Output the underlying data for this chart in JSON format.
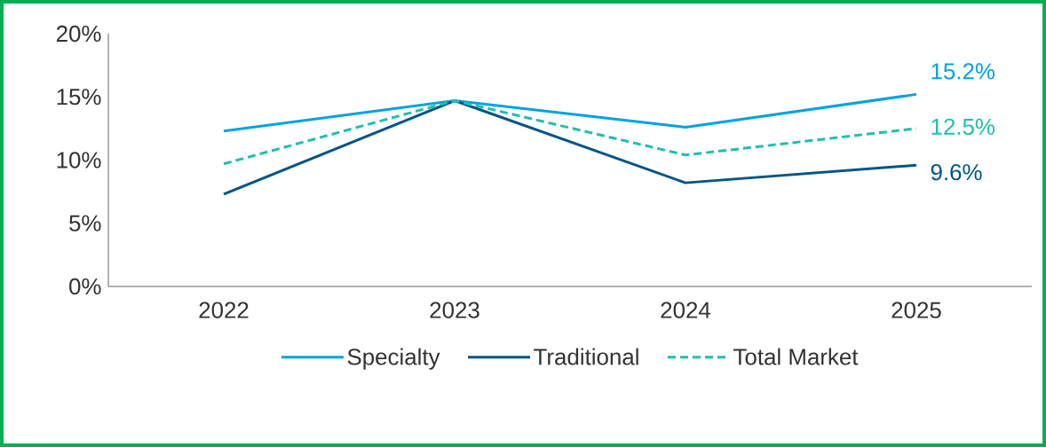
{
  "chart_data": {
    "type": "line",
    "categories": [
      "2022",
      "2023",
      "2024",
      "2025"
    ],
    "ylim": [
      0,
      20
    ],
    "yticks": [
      {
        "value": 0,
        "label": "0%"
      },
      {
        "value": 5,
        "label": "5%"
      },
      {
        "value": 10,
        "label": "10%"
      },
      {
        "value": 15,
        "label": "15%"
      },
      {
        "value": 20,
        "label": "20%"
      }
    ],
    "legend": "bottom",
    "series": [
      {
        "name": "Specialty",
        "color": "#00a3e0",
        "values": [
          12.3,
          14.7,
          12.6,
          15.2
        ],
        "value_labels": [
          null,
          null,
          null,
          "15.2%"
        ]
      },
      {
        "name": "Traditional",
        "color": "#005587",
        "values": [
          7.3,
          14.7,
          8.2,
          9.6
        ],
        "value_labels": [
          null,
          null,
          null,
          "9.6%"
        ]
      },
      {
        "name": "Total Market",
        "color": "#1fbfad",
        "line_style": "dashed",
        "values": [
          9.7,
          14.7,
          10.4,
          12.5
        ],
        "value_labels": [
          null,
          null,
          null,
          "12.5%"
        ]
      }
    ]
  }
}
